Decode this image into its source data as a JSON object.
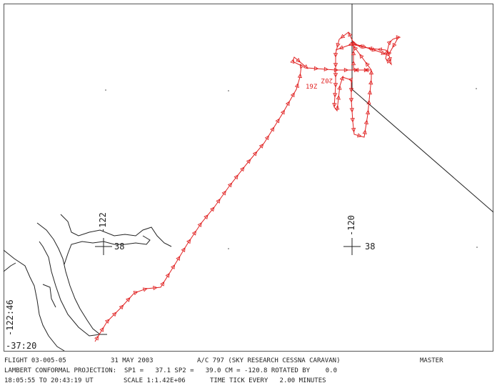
{
  "map": {
    "labels": {
      "lon_corner": "-122:46",
      "lat_corner": "-37:20",
      "lon_left": "-122",
      "lat_left": "38",
      "lon_right": "-120",
      "lat_right": "38",
      "time_19": "19Z",
      "time_20": "20Z"
    }
  },
  "footer": {
    "flight": "FLIGHT 03-005-05",
    "date": "31 MAY 2003",
    "aircraft": "A/C 797 (SKY RESEARCH CESSNA CARAVAN)",
    "mode": "MASTER",
    "projection": "LAMBERT CONFORMAL PROJECTION:  SP1 =   37.1 SP2 =   39.0 CM = -120.8 ROTATED BY    0.0",
    "time_range": "18:05:55 TO 20:43:19 UT",
    "scale": "SCALE 1:1.42E+06",
    "time_tick": "TIME TICK EVERY   2.00 MINUTES"
  }
}
